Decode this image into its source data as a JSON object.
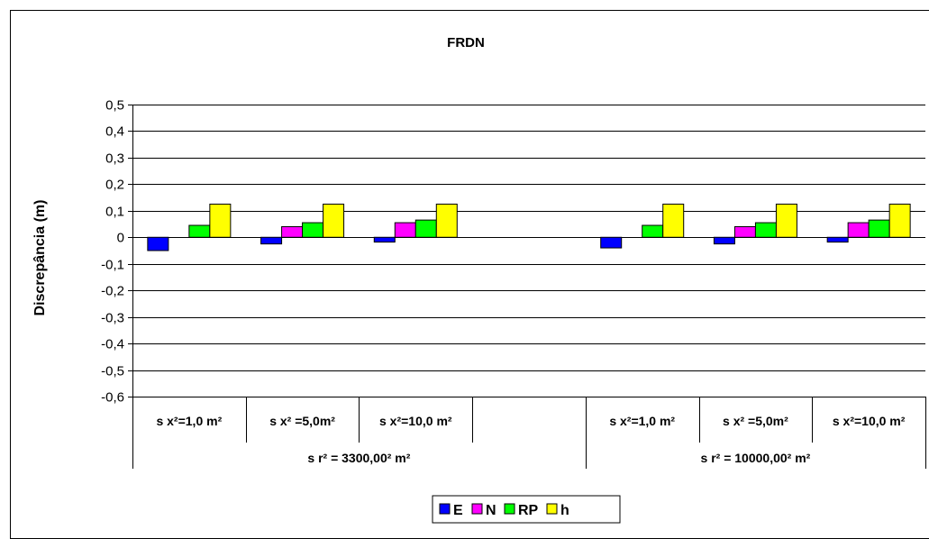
{
  "chart_data": {
    "type": "bar",
    "title": "FRDN",
    "xlabel": "",
    "ylabel": "Discrepância (m)",
    "ylim": [
      -0.6,
      0.5
    ],
    "yticks": [
      "0,5",
      "0,4",
      "0,3",
      "0,2",
      "0,1",
      "0",
      "-0,1",
      "-0,2",
      "-0,3",
      "-0,4",
      "-0,5",
      "-0,6"
    ],
    "categories": [
      "s x²=1,0 m²",
      "s x² =5,0m²",
      "s x²=10,0 m²",
      "",
      "s x²=1,0 m²",
      "s x² =5,0m²",
      "s x²=10,0 m²"
    ],
    "groups": [
      {
        "label": "s r² = 3300,00² m²"
      },
      {
        "label": "s r² = 10000,00² m²"
      }
    ],
    "series": [
      {
        "name": "E",
        "color": "#0000ff",
        "values": [
          -0.05,
          -0.025,
          -0.018,
          null,
          -0.04,
          -0.025,
          -0.018
        ]
      },
      {
        "name": "N",
        "color": "#ff00ff",
        "values": [
          0.0,
          0.04,
          0.055,
          null,
          0.0,
          0.04,
          0.055
        ]
      },
      {
        "name": "RP",
        "color": "#00ff00",
        "values": [
          0.045,
          0.055,
          0.065,
          null,
          0.045,
          0.055,
          0.065
        ]
      },
      {
        "name": "h",
        "color": "#ffff00",
        "values": [
          0.125,
          0.125,
          0.125,
          null,
          0.125,
          0.125,
          0.125
        ]
      }
    ],
    "grid": true,
    "legend": "bottom"
  }
}
